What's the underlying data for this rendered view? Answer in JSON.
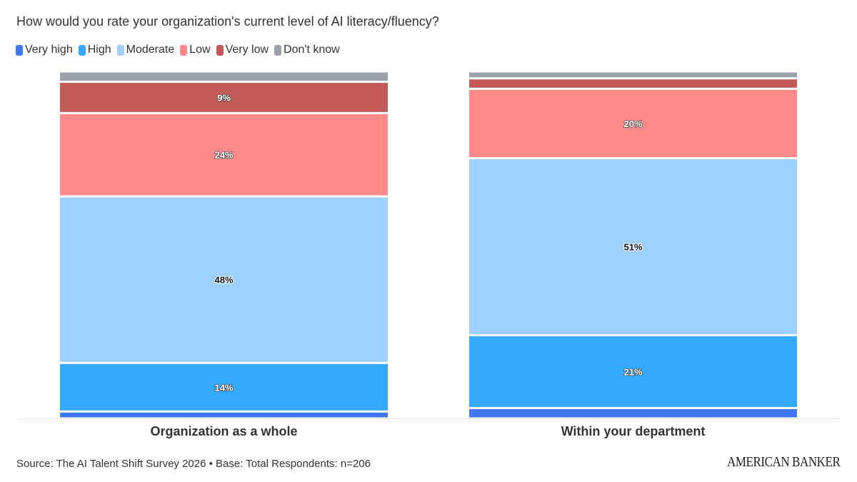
{
  "chart_data": {
    "type": "bar",
    "stacked": true,
    "title": "How would you rate your organization's current level of AI literacy/fluency?",
    "categories": [
      "Organization as a whole",
      "Within your department"
    ],
    "series": [
      {
        "name": "Very high",
        "color": "#4078f2",
        "values": [
          2,
          3
        ],
        "labels": [
          "",
          ""
        ]
      },
      {
        "name": "High",
        "color": "#33aaff",
        "values": [
          14,
          21
        ],
        "labels": [
          "14%",
          "21%"
        ]
      },
      {
        "name": "Moderate",
        "color": "#9dd0ff",
        "values": [
          48,
          51
        ],
        "labels": [
          "48%",
          "51%"
        ]
      },
      {
        "name": "Low",
        "color": "#ff8a8a",
        "values": [
          24,
          20
        ],
        "labels": [
          "24%",
          "20%"
        ]
      },
      {
        "name": "Very low",
        "color": "#c45a57",
        "values": [
          9,
          3
        ],
        "labels": [
          "9%",
          ""
        ]
      },
      {
        "name": "Don't know",
        "color": "#9ba1a8",
        "values": [
          3,
          2
        ],
        "labels": [
          "",
          ""
        ]
      }
    ],
    "ylim": [
      0,
      100
    ],
    "legend": "top-left",
    "grid": false
  },
  "footer": {
    "source": "Source: The AI Talent Shift Survey 2026 • Base: Total Respondents: n=206",
    "logo": "AMERICAN BANKER"
  }
}
